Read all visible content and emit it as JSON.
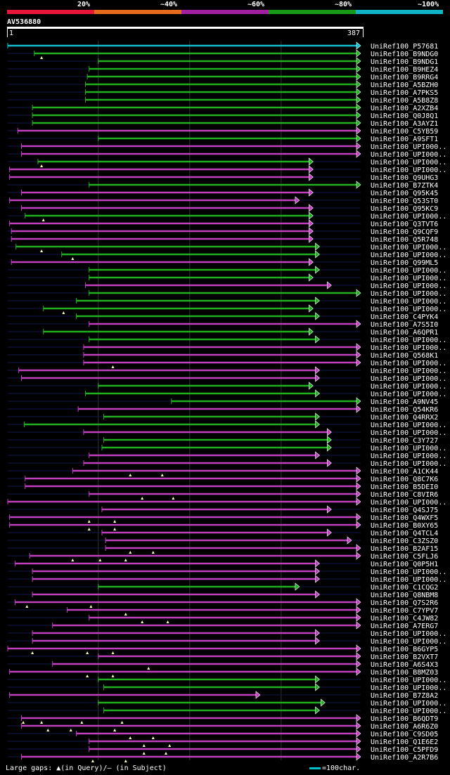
{
  "legend": {
    "segments": [
      {
        "label": "20%",
        "color": "#e8173a"
      },
      {
        "label": "~40%",
        "color": "#e46a1c"
      },
      {
        "label": "~60%",
        "color": "#a020a0"
      },
      {
        "label": "~80%",
        "color": "#189a18"
      },
      {
        "label": "~100%",
        "color": "#10b4c4"
      }
    ]
  },
  "query": {
    "id": "AV536880",
    "start": "1",
    "end": "387"
  },
  "colors": {
    "cyan": "#10c0d0",
    "green": "#20b020",
    "purple": "#c040c0",
    "gridline": "#2a3a2a",
    "backline": "#101848"
  },
  "hits": [
    {
      "label": "UniRef100_P57681",
      "color": "cyan",
      "segs": [
        [
          1,
          387
        ]
      ],
      "arrow": true,
      "marks": []
    },
    {
      "label": "UniRef100_B9NDG0",
      "color": "green",
      "segs": [
        [
          30,
          387
        ]
      ],
      "arrow": true,
      "marks": [
        38
      ]
    },
    {
      "label": "UniRef100_B9NDG1",
      "color": "green",
      "segs": [
        [
          100,
          387
        ]
      ],
      "arrow": true,
      "marks": []
    },
    {
      "label": "UniRef100_B9HEZ4",
      "color": "green",
      "segs": [
        [
          90,
          387
        ]
      ],
      "arrow": true,
      "marks": []
    },
    {
      "label": "UniRef100_B9RRG4",
      "color": "green",
      "segs": [
        [
          88,
          387
        ]
      ],
      "arrow": true,
      "marks": []
    },
    {
      "label": "UniRef100_A5BZH0",
      "color": "green",
      "segs": [
        [
          86,
          387
        ]
      ],
      "arrow": true,
      "marks": []
    },
    {
      "label": "UniRef100_A7PKS5",
      "color": "green",
      "segs": [
        [
          86,
          387
        ]
      ],
      "arrow": true,
      "marks": []
    },
    {
      "label": "UniRef100_A5B8Z8",
      "color": "green",
      "segs": [
        [
          86,
          387
        ]
      ],
      "arrow": true,
      "marks": []
    },
    {
      "label": "UniRef100_A2XZB4",
      "color": "green",
      "segs": [
        [
          28,
          387
        ]
      ],
      "arrow": true,
      "marks": []
    },
    {
      "label": "UniRef100_Q0J8Q1",
      "color": "green",
      "segs": [
        [
          28,
          387
        ]
      ],
      "arrow": true,
      "marks": []
    },
    {
      "label": "UniRef100_A3AYZ1",
      "color": "green",
      "segs": [
        [
          28,
          387
        ]
      ],
      "arrow": true,
      "marks": []
    },
    {
      "label": "UniRef100_C5YB59",
      "color": "purple",
      "segs": [
        [
          12,
          387
        ]
      ],
      "arrow": true,
      "marks": []
    },
    {
      "label": "UniRef100_A9SFT1",
      "color": "green",
      "segs": [
        [
          100,
          387
        ]
      ],
      "arrow": true,
      "marks": []
    },
    {
      "label": "UniRef100_UPI000..",
      "color": "purple",
      "segs": [
        [
          16,
          387
        ]
      ],
      "arrow": true,
      "marks": []
    },
    {
      "label": "UniRef100_UPI000..",
      "color": "purple",
      "segs": [
        [
          16,
          387
        ]
      ],
      "arrow": true,
      "marks": []
    },
    {
      "label": "UniRef100_UPI000..",
      "color": "green",
      "segs": [
        [
          34,
          335
        ]
      ],
      "arrow": true,
      "marks": [
        38
      ]
    },
    {
      "label": "UniRef100_UPI000..",
      "color": "purple",
      "segs": [
        [
          3,
          335
        ]
      ],
      "arrow": true,
      "marks": []
    },
    {
      "label": "UniRef100_Q9UHG3",
      "color": "purple",
      "segs": [
        [
          3,
          335
        ]
      ],
      "arrow": true,
      "marks": []
    },
    {
      "label": "UniRef100_B7ZTK4",
      "color": "green",
      "segs": [
        [
          90,
          387
        ]
      ],
      "arrow": true,
      "marks": []
    },
    {
      "label": "UniRef100_Q95K45",
      "color": "purple",
      "segs": [
        [
          16,
          335
        ]
      ],
      "arrow": true,
      "marks": []
    },
    {
      "label": "UniRef100_Q53ST0",
      "color": "purple",
      "segs": [
        [
          3,
          320
        ]
      ],
      "arrow": true,
      "marks": []
    },
    {
      "label": "UniRef100_Q95KC9",
      "color": "purple",
      "segs": [
        [
          16,
          335
        ]
      ],
      "arrow": true,
      "marks": []
    },
    {
      "label": "UniRef100_UPI000..",
      "color": "green",
      "segs": [
        [
          20,
          335
        ]
      ],
      "arrow": true,
      "marks": [
        40
      ]
    },
    {
      "label": "UniRef100_Q3TVT6",
      "color": "purple",
      "segs": [
        [
          3,
          335
        ]
      ],
      "arrow": true,
      "marks": []
    },
    {
      "label": "UniRef100_Q9CQF9",
      "color": "purple",
      "segs": [
        [
          5,
          335
        ]
      ],
      "arrow": true,
      "marks": []
    },
    {
      "label": "UniRef100_Q5R748",
      "color": "purple",
      "segs": [
        [
          5,
          335
        ]
      ],
      "arrow": true,
      "marks": []
    },
    {
      "label": "UniRef100_UPI000..",
      "color": "green",
      "segs": [
        [
          10,
          342
        ]
      ],
      "arrow": true,
      "marks": [
        38
      ]
    },
    {
      "label": "UniRef100_UPI000..",
      "color": "green",
      "segs": [
        [
          60,
          342
        ]
      ],
      "arrow": true,
      "marks": [
        72
      ]
    },
    {
      "label": "UniRef100_Q99ML5",
      "color": "purple",
      "segs": [
        [
          5,
          335
        ]
      ],
      "arrow": true,
      "marks": []
    },
    {
      "label": "UniRef100_UPI000..",
      "color": "green",
      "segs": [
        [
          90,
          342
        ]
      ],
      "arrow": true,
      "marks": []
    },
    {
      "label": "UniRef100_UPI000..",
      "color": "green",
      "segs": [
        [
          90,
          335
        ]
      ],
      "arrow": true,
      "marks": []
    },
    {
      "label": "UniRef100_UPI000..",
      "color": "purple",
      "segs": [
        [
          86,
          355
        ]
      ],
      "arrow": true,
      "marks": []
    },
    {
      "label": "UniRef100_UPI000..",
      "color": "green",
      "segs": [
        [
          90,
          387
        ]
      ],
      "arrow": true,
      "marks": []
    },
    {
      "label": "UniRef100_UPI000..",
      "color": "green",
      "segs": [
        [
          76,
          342
        ]
      ],
      "arrow": true,
      "marks": []
    },
    {
      "label": "UniRef100_UPI000..",
      "color": "green",
      "segs": [
        [
          40,
          335
        ]
      ],
      "arrow": true,
      "marks": [
        62
      ]
    },
    {
      "label": "UniRef100_C4PYK4",
      "color": "green",
      "segs": [
        [
          76,
          342
        ]
      ],
      "arrow": true,
      "marks": []
    },
    {
      "label": "UniRef100_A7S5I0",
      "color": "purple",
      "segs": [
        [
          90,
          387
        ]
      ],
      "arrow": true,
      "marks": []
    },
    {
      "label": "UniRef100_A6QPR1",
      "color": "green",
      "segs": [
        [
          40,
          335
        ]
      ],
      "arrow": true,
      "marks": []
    },
    {
      "label": "UniRef100_UPI000..",
      "color": "green",
      "segs": [
        [
          90,
          342
        ]
      ],
      "arrow": true,
      "marks": []
    },
    {
      "label": "UniRef100_UPI000..",
      "color": "purple",
      "segs": [
        [
          84,
          387
        ]
      ],
      "arrow": true,
      "marks": []
    },
    {
      "label": "UniRef100_Q568K1",
      "color": "purple",
      "segs": [
        [
          84,
          387
        ]
      ],
      "arrow": true,
      "marks": []
    },
    {
      "label": "UniRef100_UPI000..",
      "color": "purple",
      "segs": [
        [
          84,
          387
        ]
      ],
      "arrow": true,
      "marks": [
        116
      ]
    },
    {
      "label": "UniRef100_UPI000..",
      "color": "purple",
      "segs": [
        [
          13,
          342
        ]
      ],
      "arrow": true,
      "marks": []
    },
    {
      "label": "UniRef100_UPI000..",
      "color": "purple",
      "segs": [
        [
          16,
          342
        ]
      ],
      "arrow": true,
      "marks": []
    },
    {
      "label": "UniRef100_UPI000..",
      "color": "green",
      "segs": [
        [
          100,
          335
        ]
      ],
      "arrow": true,
      "marks": []
    },
    {
      "label": "UniRef100_UPI000..",
      "color": "green",
      "segs": [
        [
          86,
          342
        ]
      ],
      "arrow": true,
      "marks": []
    },
    {
      "label": "UniRef100_A9NV45",
      "color": "green",
      "segs": [
        [
          180,
          387
        ]
      ],
      "arrow": true,
      "marks": []
    },
    {
      "label": "UniRef100_Q54KR6",
      "color": "purple",
      "segs": [
        [
          78,
          387
        ]
      ],
      "arrow": true,
      "marks": []
    },
    {
      "label": "UniRef100_Q4RRX2",
      "color": "green",
      "segs": [
        [
          106,
          342
        ]
      ],
      "arrow": true,
      "marks": []
    },
    {
      "label": "UniRef100_UPI000..",
      "color": "green",
      "segs": [
        [
          19,
          342
        ]
      ],
      "arrow": true,
      "marks": []
    },
    {
      "label": "UniRef100_UPI000..",
      "color": "purple",
      "segs": [
        [
          84,
          355
        ]
      ],
      "arrow": true,
      "marks": []
    },
    {
      "label": "UniRef100_C3Y727",
      "color": "green",
      "segs": [
        [
          106,
          355
        ]
      ],
      "arrow": true,
      "marks": []
    },
    {
      "label": "UniRef100_UPI000..",
      "color": "green",
      "segs": [
        [
          104,
          355
        ]
      ],
      "arrow": true,
      "marks": []
    },
    {
      "label": "UniRef100_UPI000..",
      "color": "purple",
      "segs": [
        [
          90,
          342
        ]
      ],
      "arrow": true,
      "marks": []
    },
    {
      "label": "UniRef100_UPI000..",
      "color": "purple",
      "segs": [
        [
          84,
          355
        ]
      ],
      "arrow": true,
      "marks": []
    },
    {
      "label": "UniRef100_A1CK44",
      "color": "purple",
      "segs": [
        [
          72,
          387
        ]
      ],
      "arrow": true,
      "marks": [
        135,
        170
      ]
    },
    {
      "label": "UniRef100_Q8C7K6",
      "color": "purple",
      "segs": [
        [
          20,
          387
        ]
      ],
      "arrow": true,
      "marks": []
    },
    {
      "label": "UniRef100_B5DEI0",
      "color": "purple",
      "segs": [
        [
          20,
          387
        ]
      ],
      "arrow": true,
      "marks": []
    },
    {
      "label": "UniRef100_C8VIR6",
      "color": "purple",
      "segs": [
        [
          90,
          387
        ]
      ],
      "arrow": true,
      "marks": [
        148,
        182
      ]
    },
    {
      "label": "UniRef100_UPI000..",
      "color": "purple",
      "segs": [
        [
          1,
          387
        ]
      ],
      "arrow": true,
      "marks": []
    },
    {
      "label": "UniRef100_Q4SJ75",
      "color": "purple",
      "segs": [
        [
          104,
          355
        ]
      ],
      "arrow": true,
      "marks": []
    },
    {
      "label": "UniRef100_Q4WXF5",
      "color": "purple",
      "segs": [
        [
          3,
          387
        ]
      ],
      "arrow": true,
      "marks": [
        90,
        118
      ]
    },
    {
      "label": "UniRef100_B0XY65",
      "color": "purple",
      "segs": [
        [
          3,
          387
        ]
      ],
      "arrow": true,
      "marks": [
        90,
        118
      ]
    },
    {
      "label": "UniRef100_Q4TCL4",
      "color": "purple",
      "segs": [
        [
          104,
          355
        ]
      ],
      "arrow": true,
      "marks": []
    },
    {
      "label": "UniRef100_C3ZSZ0",
      "color": "purple",
      "segs": [
        [
          108,
          377
        ]
      ],
      "arrow": true,
      "marks": []
    },
    {
      "label": "UniRef100_B2AF15",
      "color": "purple",
      "segs": [
        [
          108,
          387
        ]
      ],
      "arrow": true,
      "marks": [
        135,
        160
      ]
    },
    {
      "label": "UniRef100_C5FLJ6",
      "color": "purple",
      "segs": [
        [
          25,
          387
        ]
      ],
      "arrow": true,
      "marks": [
        72,
        102,
        130
      ]
    },
    {
      "label": "UniRef100_Q0P5H1",
      "color": "purple",
      "segs": [
        [
          9,
          342
        ]
      ],
      "arrow": true,
      "marks": []
    },
    {
      "label": "UniRef100_UPI000..",
      "color": "purple",
      "segs": [
        [
          28,
          342
        ]
      ],
      "arrow": true,
      "marks": []
    },
    {
      "label": "UniRef100_UPI000..",
      "color": "purple",
      "segs": [
        [
          28,
          342
        ]
      ],
      "arrow": true,
      "marks": []
    },
    {
      "label": "UniRef100_C1CQG2",
      "color": "green",
      "segs": [
        [
          100,
          320
        ]
      ],
      "arrow": true,
      "marks": []
    },
    {
      "label": "UniRef100_Q8NBM8",
      "color": "purple",
      "segs": [
        [
          28,
          342
        ]
      ],
      "arrow": true,
      "marks": []
    },
    {
      "label": "UniRef100_Q7S2R6",
      "color": "purple",
      "segs": [
        [
          9,
          387
        ]
      ],
      "arrow": true,
      "marks": [
        22,
        92
      ]
    },
    {
      "label": "UniRef100_C7YPV7",
      "color": "purple",
      "segs": [
        [
          66,
          387
        ]
      ],
      "arrow": true,
      "marks": [
        130
      ]
    },
    {
      "label": "UniRef100_C4JW82",
      "color": "purple",
      "segs": [
        [
          90,
          387
        ]
      ],
      "arrow": true,
      "marks": [
        148,
        176
      ]
    },
    {
      "label": "UniRef100_A7ERG7",
      "color": "purple",
      "segs": [
        [
          50,
          387
        ]
      ],
      "arrow": true,
      "marks": []
    },
    {
      "label": "UniRef100_UPI000..",
      "color": "purple",
      "segs": [
        [
          28,
          342
        ]
      ],
      "arrow": true,
      "marks": []
    },
    {
      "label": "UniRef100_UPI000..",
      "color": "purple",
      "segs": [
        [
          28,
          342
        ]
      ],
      "arrow": true,
      "marks": []
    },
    {
      "label": "UniRef100_B6GYP5",
      "color": "purple",
      "segs": [
        [
          1,
          387
        ]
      ],
      "arrow": true,
      "marks": [
        28,
        88,
        116
      ]
    },
    {
      "label": "UniRef100_B2VXT7",
      "color": "purple",
      "segs": [
        [
          100,
          387
        ]
      ],
      "arrow": true,
      "marks": []
    },
    {
      "label": "UniRef100_A6S4X3",
      "color": "purple",
      "segs": [
        [
          50,
          387
        ]
      ],
      "arrow": true,
      "marks": [
        155
      ]
    },
    {
      "label": "UniRef100_B8MZ03",
      "color": "purple",
      "segs": [
        [
          3,
          387
        ]
      ],
      "arrow": true,
      "marks": [
        88,
        116
      ]
    },
    {
      "label": "UniRef100_UPI000..",
      "color": "green",
      "segs": [
        [
          100,
          342
        ]
      ],
      "arrow": true,
      "marks": []
    },
    {
      "label": "UniRef100_UPI000..",
      "color": "green",
      "segs": [
        [
          106,
          342
        ]
      ],
      "arrow": true,
      "marks": []
    },
    {
      "label": "UniRef100_B7Z8A2",
      "color": "purple",
      "segs": [
        [
          3,
          277
        ]
      ],
      "arrow": true,
      "marks": []
    },
    {
      "label": "UniRef100_UPI000..",
      "color": "green",
      "segs": [
        [
          100,
          348
        ]
      ],
      "arrow": true,
      "marks": []
    },
    {
      "label": "UniRef100_UPI000..",
      "color": "green",
      "segs": [
        [
          106,
          342
        ]
      ],
      "arrow": true,
      "marks": []
    },
    {
      "label": "UniRef100_B6QDT9",
      "color": "purple",
      "segs": [
        [
          16,
          387
        ]
      ],
      "arrow": true,
      "marks": [
        18,
        38,
        82,
        126
      ]
    },
    {
      "label": "UniRef100_A6R6Z0",
      "color": "purple",
      "segs": [
        [
          16,
          387
        ]
      ],
      "arrow": true,
      "marks": [
        45,
        70,
        118
      ]
    },
    {
      "label": "UniRef100_C9SD05",
      "color": "purple",
      "segs": [
        [
          76,
          387
        ]
      ],
      "arrow": true,
      "marks": [
        135,
        160
      ]
    },
    {
      "label": "UniRef100_Q1E6E2",
      "color": "purple",
      "segs": [
        [
          90,
          387
        ]
      ],
      "arrow": true,
      "marks": [
        150,
        178
      ]
    },
    {
      "label": "UniRef100_C5PFD9",
      "color": "purple",
      "segs": [
        [
          90,
          387
        ]
      ],
      "arrow": true,
      "marks": [
        150,
        174
      ]
    },
    {
      "label": "UniRef100_A2R7B6",
      "color": "purple",
      "segs": [
        [
          16,
          387
        ]
      ],
      "arrow": true,
      "marks": [
        94,
        130
      ]
    }
  ],
  "footer": {
    "text": "Large gaps: ▲(in Query)/– (in Subject)",
    "scale": "=100char."
  }
}
